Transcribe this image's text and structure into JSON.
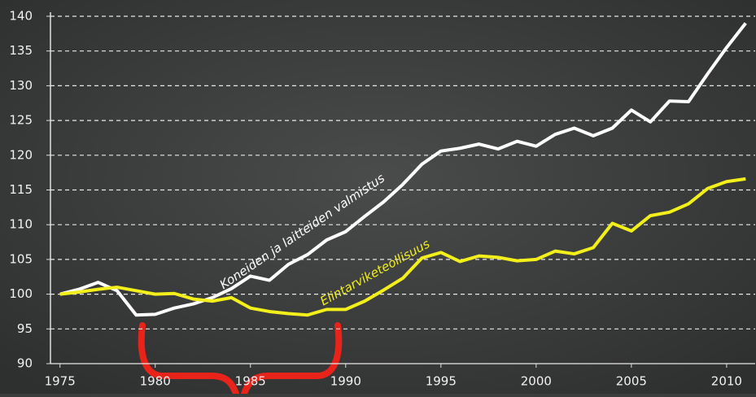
{
  "chart_data": {
    "type": "line",
    "x": [
      1975,
      1976,
      1977,
      1978,
      1979,
      1980,
      1981,
      1982,
      1983,
      1984,
      1985,
      1986,
      1987,
      1988,
      1989,
      1990,
      1991,
      1992,
      1993,
      1994,
      1995,
      1996,
      1997,
      1998,
      1999,
      2000,
      2001,
      2002,
      2003,
      2004,
      2005,
      2006,
      2007,
      2008,
      2009,
      2010,
      2011
    ],
    "series": [
      {
        "name": "Koneiden ja laitteiden valmistus",
        "color": "#ffffff",
        "values": [
          100,
          100.7,
          101.7,
          100.5,
          97,
          97.1,
          98,
          98.6,
          99.5,
          100.8,
          102.6,
          102,
          104.3,
          105.7,
          107.8,
          109,
          111.2,
          113.3,
          115.8,
          118.7,
          120.6,
          121,
          121.6,
          120.9,
          122,
          121.3,
          123,
          123.9,
          122.8,
          123.9,
          126.5,
          124.8,
          127.8,
          127.7,
          131.7,
          135.5,
          139
        ]
      },
      {
        "name": "Elintarviketeollisuus",
        "color": "#f2ef1a",
        "values": [
          100,
          100.3,
          100.7,
          101,
          100.5,
          100,
          100.1,
          99.3,
          99,
          99.5,
          98,
          97.5,
          97.2,
          97,
          97.8,
          97.8,
          99,
          100.6,
          102.3,
          105.2,
          106,
          104.7,
          105.5,
          105.3,
          104.8,
          105,
          106.2,
          105.8,
          106.7,
          110.2,
          109.1,
          111.3,
          111.8,
          113,
          115.2,
          116.2,
          116.6
        ]
      }
    ],
    "xlim": [
      1974.5,
      2011.5
    ],
    "xticks": [
      1975,
      1980,
      1985,
      1990,
      1995,
      2000,
      2005,
      2010
    ],
    "ylim": [
      90,
      140
    ],
    "yticks": [
      90,
      95,
      100,
      105,
      110,
      115,
      120,
      125,
      130,
      135,
      140
    ],
    "grid": true
  }
}
